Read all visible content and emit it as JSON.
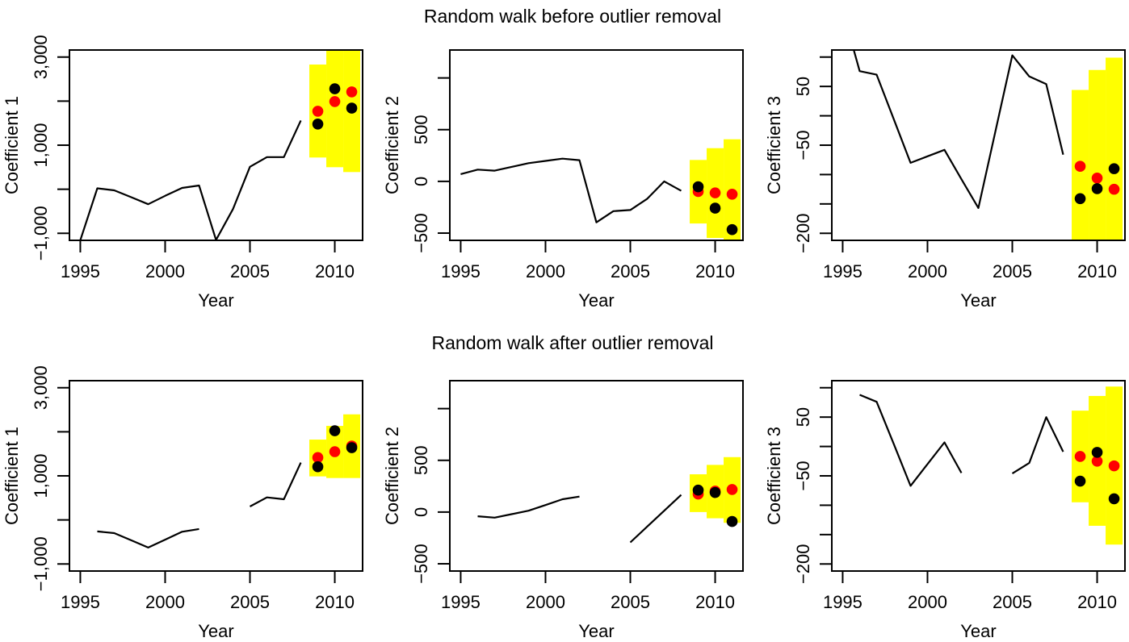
{
  "titles": [
    "Random walk before outlier removal",
    "Random walk after outlier removal"
  ],
  "colors": {
    "interval": "#FFFF00",
    "line": "#000000",
    "point_red": "#FF0000",
    "point_black": "#000000"
  },
  "chart_data": [
    {
      "type": "line",
      "row": 0,
      "col": 0,
      "xlabel": "Year",
      "ylabel": "Coefficient 1",
      "xlim": [
        1994.36,
        2011.64
      ],
      "ylim": [
        -1160,
        3160
      ],
      "xticks": [
        1995,
        2000,
        2005,
        2010
      ],
      "xtick_labels": [
        "1995",
        "2000",
        "2005",
        "2010"
      ],
      "yticks": [
        -1000,
        0,
        1000,
        2000,
        3000
      ],
      "ytick_labels": [
        "−1,000",
        "",
        "1,000",
        "",
        "3,000"
      ],
      "x": [
        1995,
        1996,
        1997,
        1998,
        1999,
        2000,
        2001,
        2002,
        2003,
        2004,
        2005,
        2006,
        2007,
        2008
      ],
      "y": [
        -1160,
        20,
        -25,
        -180,
        -340,
        -150,
        30,
        85,
        -1150,
        -450,
        510,
        730,
        730,
        1560
      ],
      "intervals": [
        {
          "x": 2009,
          "lo": 720,
          "hi": 2830
        },
        {
          "x": 2010,
          "lo": 500,
          "hi": 3400
        },
        {
          "x": 2011,
          "lo": 390,
          "hi": 3400
        }
      ],
      "red_points": [
        {
          "x": 2009,
          "y": 1770
        },
        {
          "x": 2010,
          "y": 1990
        },
        {
          "x": 2011,
          "y": 2210
        }
      ],
      "black_points": [
        {
          "x": 2009,
          "y": 1480
        },
        {
          "x": 2010,
          "y": 2280
        },
        {
          "x": 2011,
          "y": 1840
        }
      ]
    },
    {
      "type": "line",
      "row": 0,
      "col": 1,
      "xlabel": "Year",
      "ylabel": "Coefficient 2",
      "xlim": [
        1994.36,
        2011.64
      ],
      "ylim": [
        -570,
        1270
      ],
      "xticks": [
        1995,
        2000,
        2005,
        2010
      ],
      "xtick_labels": [
        "1995",
        "2000",
        "2005",
        "2010"
      ],
      "yticks": [
        -500,
        0,
        500,
        1000
      ],
      "ytick_labels": [
        "−500",
        "0",
        "500",
        ""
      ],
      "x": [
        1995,
        1996,
        1997,
        1998,
        1999,
        2000,
        2001,
        2002,
        2003,
        2004,
        2005,
        2006,
        2007,
        2008
      ],
      "y": [
        70,
        114,
        104,
        140,
        176,
        198,
        220,
        205,
        -396,
        -288,
        -277,
        -168,
        0,
        -91
      ],
      "intervals": [
        {
          "x": 2009,
          "lo": -407,
          "hi": 207
        },
        {
          "x": 2010,
          "lo": -547,
          "hi": 321
        },
        {
          "x": 2011,
          "lo": -650,
          "hi": 407
        }
      ],
      "red_points": [
        {
          "x": 2009,
          "y": -98
        },
        {
          "x": 2010,
          "y": -111
        },
        {
          "x": 2011,
          "y": -124
        }
      ],
      "black_points": [
        {
          "x": 2009,
          "y": -52
        },
        {
          "x": 2010,
          "y": -259
        },
        {
          "x": 2011,
          "y": -466
        }
      ]
    },
    {
      "type": "line",
      "row": 0,
      "col": 2,
      "xlabel": "Year",
      "ylabel": "Coefficient 3",
      "xlim": [
        1994.36,
        2011.64
      ],
      "ylim": [
        -212,
        112
      ],
      "xticks": [
        1995,
        2000,
        2005,
        2010
      ],
      "xtick_labels": [
        "1995",
        "2000",
        "2005",
        "2010"
      ],
      "yticks": [
        -200,
        -150,
        -100,
        -50,
        0,
        50,
        100
      ],
      "ytick_labels": [
        "−200",
        "",
        "",
        "−50",
        "",
        "50",
        ""
      ],
      "x": [
        1995,
        1996,
        1997,
        1998,
        1999,
        2000,
        2001,
        2002,
        2003,
        2004,
        2005,
        2006,
        2007,
        2008
      ],
      "y": [
        180,
        76,
        70,
        -5,
        -80,
        -69,
        -58,
        -108,
        -157,
        -27,
        103,
        67,
        54,
        -66
      ],
      "intervals": [
        {
          "x": 2009,
          "lo": -260,
          "hi": 44
        },
        {
          "x": 2010,
          "lo": -260,
          "hi": 78
        },
        {
          "x": 2011,
          "lo": -260,
          "hi": 99
        }
      ],
      "red_points": [
        {
          "x": 2009,
          "y": -86
        },
        {
          "x": 2010,
          "y": -106
        },
        {
          "x": 2011,
          "y": -125
        }
      ],
      "black_points": [
        {
          "x": 2009,
          "y": -141
        },
        {
          "x": 2010,
          "y": -124
        },
        {
          "x": 2011,
          "y": -90
        }
      ]
    },
    {
      "type": "line",
      "row": 1,
      "col": 0,
      "xlabel": "Year",
      "ylabel": "Coefficient 1",
      "xlim": [
        1994.36,
        2011.64
      ],
      "ylim": [
        -1160,
        3160
      ],
      "xticks": [
        1995,
        2000,
        2005,
        2010
      ],
      "xtick_labels": [
        "1995",
        "2000",
        "2005",
        "2010"
      ],
      "yticks": [
        -1000,
        0,
        1000,
        2000,
        3000
      ],
      "ytick_labels": [
        "−1,000",
        "",
        "1,000",
        "",
        "3,000"
      ],
      "x": [
        1995,
        1996,
        1997,
        1998,
        1999,
        2000,
        2001,
        2002,
        2003,
        2004,
        2005,
        2006,
        2007,
        2008
      ],
      "y": [
        null,
        -262,
        -299,
        -463,
        -628,
        -448,
        -268,
        -207,
        null,
        null,
        305,
        512,
        470,
        1300
      ],
      "intervals": [
        {
          "x": 2009,
          "lo": 988,
          "hi": 1823
        },
        {
          "x": 2010,
          "lo": 951,
          "hi": 2134
        },
        {
          "x": 2011,
          "lo": 951,
          "hi": 2396
        }
      ],
      "red_points": [
        {
          "x": 2009,
          "y": 1415
        },
        {
          "x": 2010,
          "y": 1549
        },
        {
          "x": 2011,
          "y": 1677
        }
      ],
      "black_points": [
        {
          "x": 2009,
          "y": 1207
        },
        {
          "x": 2010,
          "y": 2024
        },
        {
          "x": 2011,
          "y": 1640
        }
      ]
    },
    {
      "type": "line",
      "row": 1,
      "col": 1,
      "xlabel": "Year",
      "ylabel": "Coefficient 2",
      "xlim": [
        1994.36,
        2011.64
      ],
      "ylim": [
        -570,
        1270
      ],
      "xticks": [
        1995,
        2000,
        2005,
        2010
      ],
      "xtick_labels": [
        "1995",
        "2000",
        "2005",
        "2010"
      ],
      "yticks": [
        -500,
        0,
        500,
        1000
      ],
      "ytick_labels": [
        "−500",
        "0",
        "500",
        ""
      ],
      "x": [
        1995,
        1996,
        1997,
        1998,
        1999,
        2000,
        2001,
        2002,
        2003,
        2004,
        2005,
        2006,
        2007,
        2008
      ],
      "y": [
        null,
        -41,
        -54,
        -20,
        13,
        68,
        124,
        150,
        null,
        null,
        -293,
        -140,
        13,
        166
      ],
      "intervals": [
        {
          "x": 2009,
          "lo": 0,
          "hi": 365
        },
        {
          "x": 2010,
          "lo": -60,
          "hi": 456
        },
        {
          "x": 2011,
          "lo": -104,
          "hi": 531
        }
      ],
      "red_points": [
        {
          "x": 2009,
          "y": 174
        },
        {
          "x": 2010,
          "y": 202
        },
        {
          "x": 2011,
          "y": 218
        }
      ],
      "black_points": [
        {
          "x": 2009,
          "y": 212
        },
        {
          "x": 2010,
          "y": 189
        },
        {
          "x": 2011,
          "y": -91
        }
      ]
    },
    {
      "type": "line",
      "row": 1,
      "col": 2,
      "xlabel": "Year",
      "ylabel": "Coefficient 3",
      "xlim": [
        1994.36,
        2011.64
      ],
      "ylim": [
        -212,
        112
      ],
      "xticks": [
        1995,
        2000,
        2005,
        2010
      ],
      "xtick_labels": [
        "1995",
        "2000",
        "2005",
        "2010"
      ],
      "yticks": [
        -200,
        -150,
        -100,
        -50,
        0,
        50,
        100
      ],
      "ytick_labels": [
        "−200",
        "",
        "",
        "−50",
        "",
        "50",
        ""
      ],
      "x": [
        1995,
        1996,
        1997,
        1998,
        1999,
        2000,
        2001,
        2002,
        2003,
        2004,
        2005,
        2006,
        2007,
        2008
      ],
      "y": [
        null,
        88,
        76,
        5,
        -67,
        -30,
        7,
        -45,
        null,
        null,
        -46,
        -28,
        50,
        -9
      ],
      "intervals": [
        {
          "x": 2009,
          "lo": -95,
          "hi": 61
        },
        {
          "x": 2010,
          "lo": -135,
          "hi": 86
        },
        {
          "x": 2011,
          "lo": -167,
          "hi": 102
        }
      ],
      "red_points": [
        {
          "x": 2009,
          "y": -17
        },
        {
          "x": 2010,
          "y": -25
        },
        {
          "x": 2011,
          "y": -33
        }
      ],
      "black_points": [
        {
          "x": 2009,
          "y": -59
        },
        {
          "x": 2010,
          "y": -10
        },
        {
          "x": 2011,
          "y": -89
        }
      ]
    }
  ]
}
